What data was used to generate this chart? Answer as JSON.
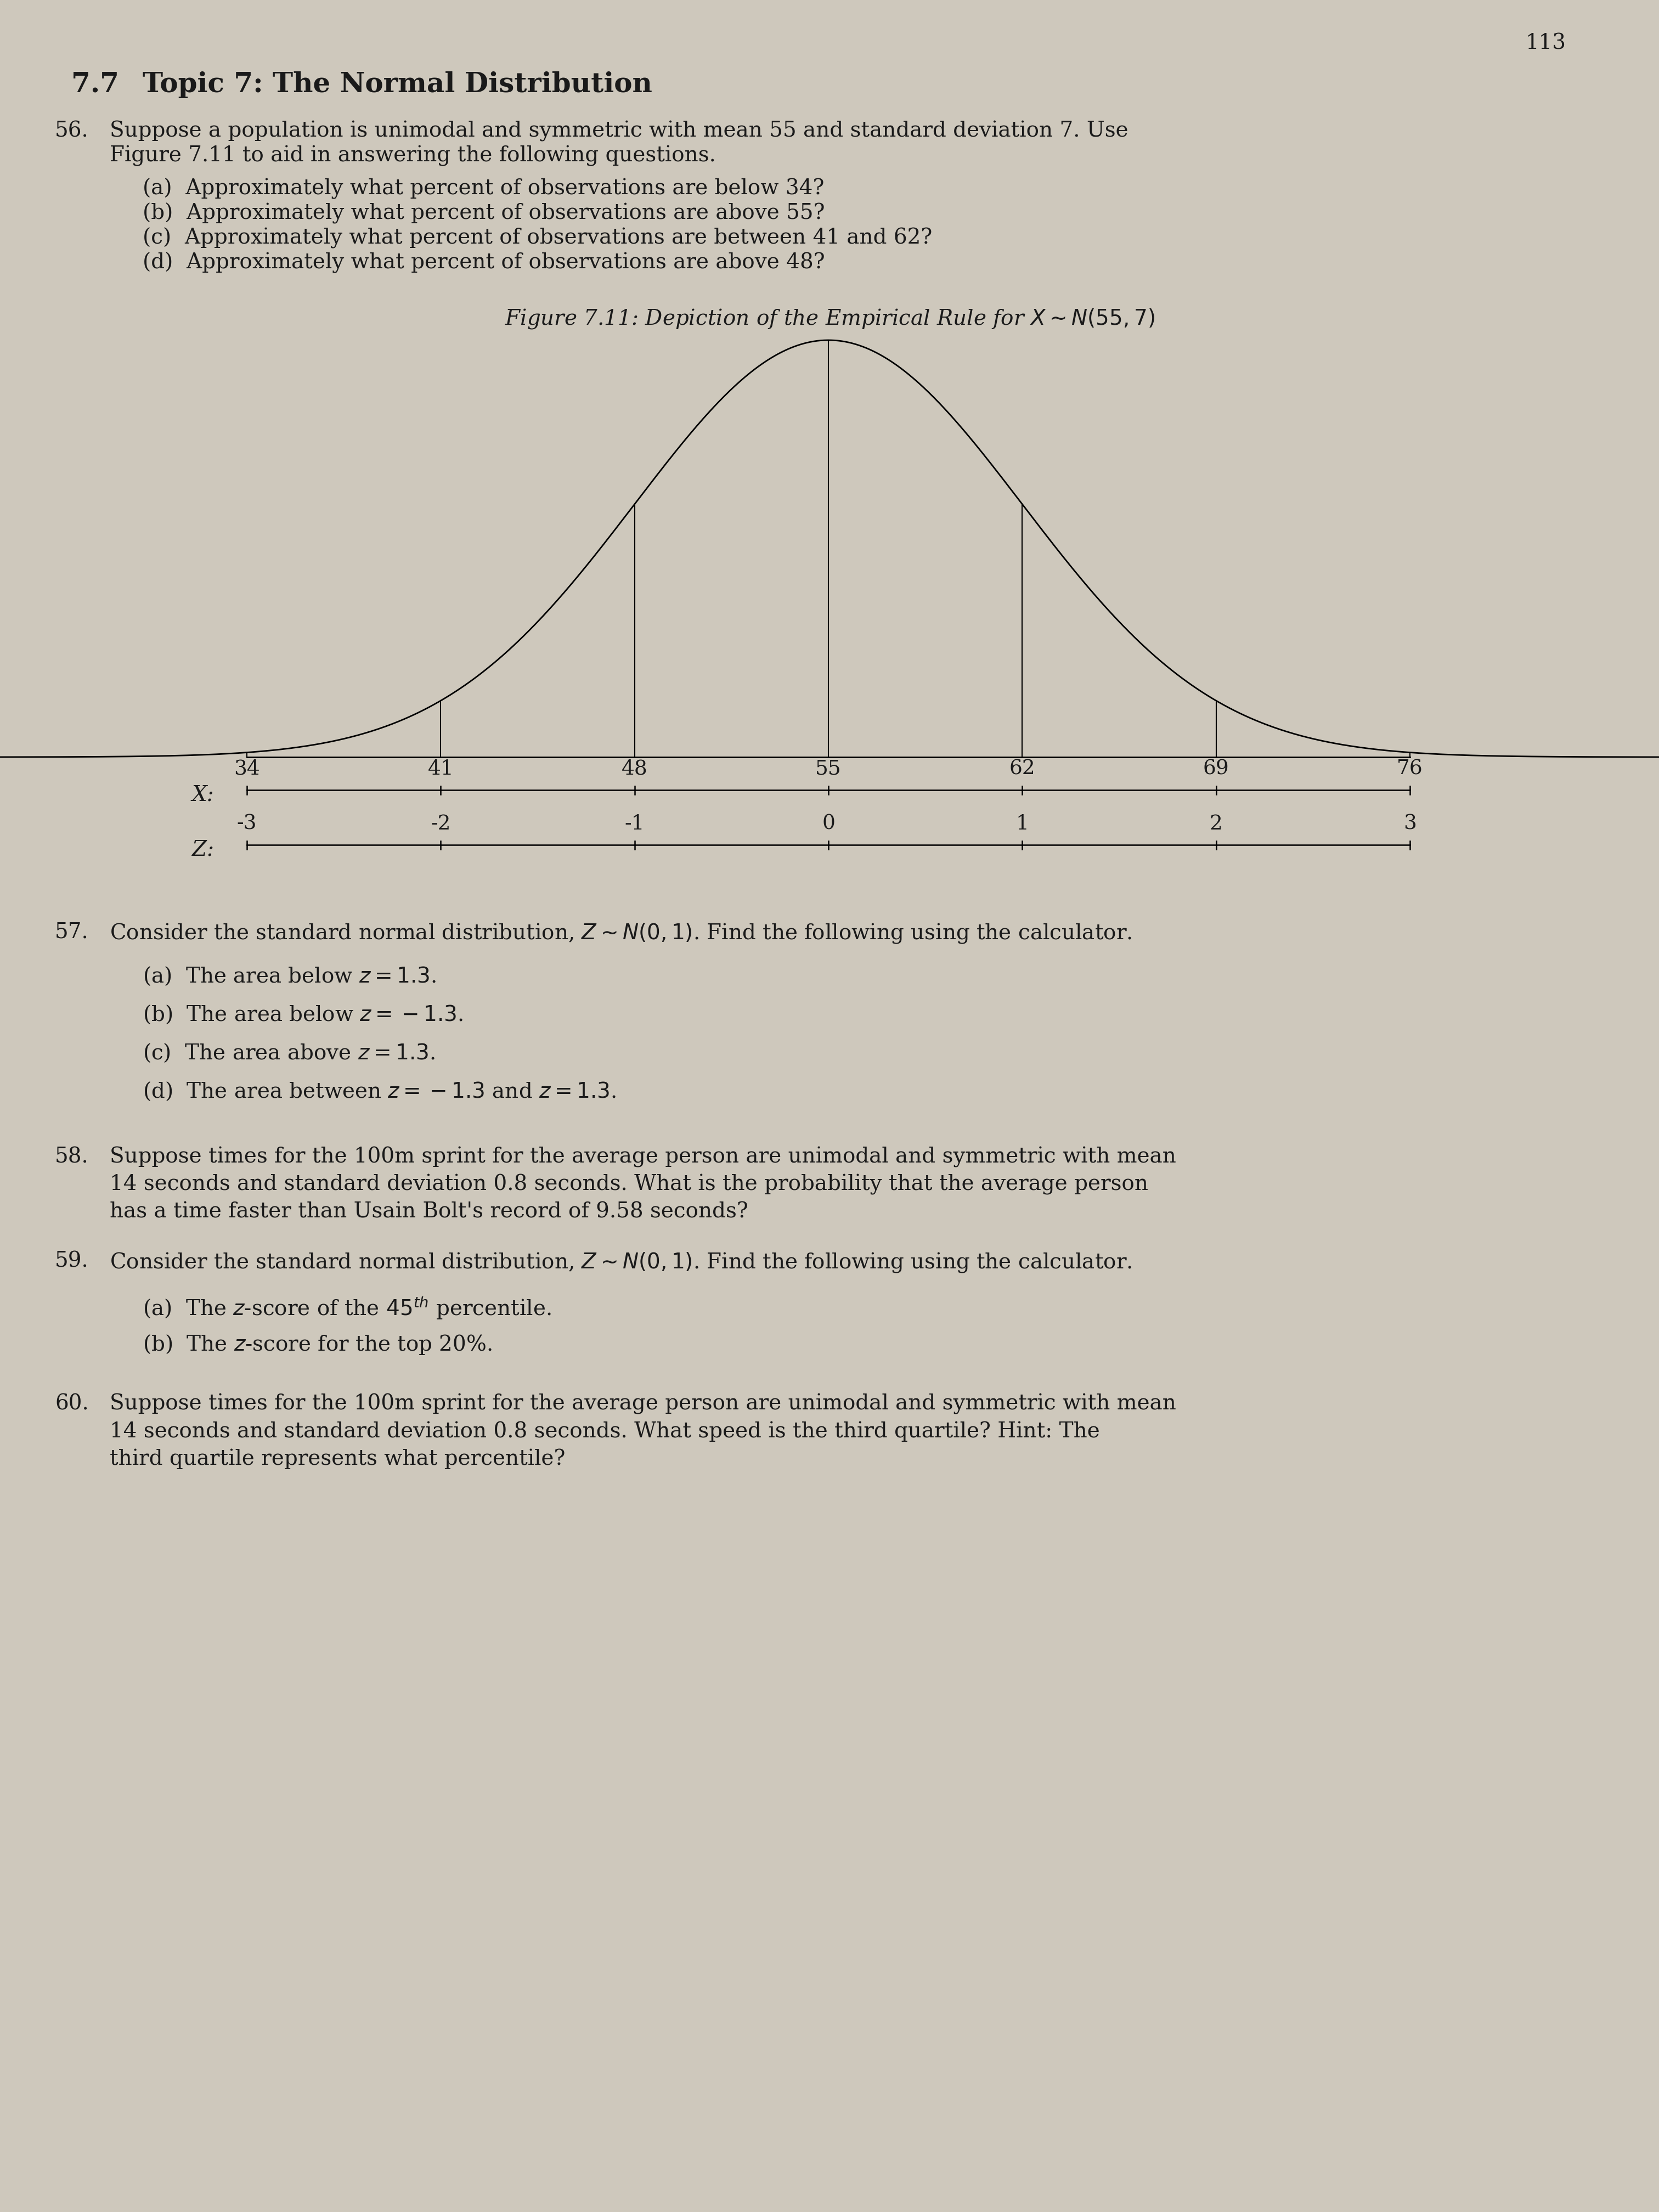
{
  "page_number": "113",
  "section_number": "7.7",
  "section_title": "Topic 7: The Normal Distribution",
  "bg_color": "#cec8bc",
  "text_color": "#1a1a1a",
  "p56_number": "56.",
  "p56_line1": "Suppose a population is unimodal and symmetric with mean 55 and standard deviation 7. Use",
  "p56_line2": "Figure 7.11 to aid in answering the following questions.",
  "p56_parts": [
    "(a)  Approximately what percent of observations are below 34?",
    "(b)  Approximately what percent of observations are above 55?",
    "(c)  Approximately what percent of observations are between 41 and 62?",
    "(d)  Approximately what percent of observations are above 48?"
  ],
  "figure_caption": "Figure 7.11: Depiction of the Empirical Rule for $X \\sim N(55, 7)$",
  "x_labels": [
    "34",
    "41",
    "48",
    "55",
    "62",
    "69",
    "76"
  ],
  "z_labels": [
    "-3",
    "-2",
    "-1",
    "0",
    "1",
    "2",
    "3"
  ],
  "mean": 55,
  "std": 7,
  "p57_number": "57.",
  "p57_intro": "Consider the standard normal distribution, $Z \\sim N(0, 1)$. Find the following using the calculator.",
  "p57_parts": [
    "(a)  The area below $z = 1.3$.",
    "(b)  The area below $z = -1.3$.",
    "(c)  The area above $z = 1.3$.",
    "(d)  The area between $z = -1.3$ and $z = 1.3$."
  ],
  "p58_number": "58.",
  "p58_line1": "Suppose times for the 100m sprint for the average person are unimodal and symmetric with mean",
  "p58_line2": "14 seconds and standard deviation 0.8 seconds. What is the probability that the average person",
  "p58_line3": "has a time faster than Usain Bolt's record of 9.58 seconds?",
  "p59_number": "59.",
  "p59_intro": "Consider the standard normal distribution, $Z \\sim N(0, 1)$. Find the following using the calculator.",
  "p59_parts": [
    "(a)  The $z$-score of the $45^{th}$ percentile.",
    "(b)  The $z$-score for the top 20%."
  ],
  "p60_number": "60.",
  "p60_line1": "Suppose times for the 100m sprint for the average person are unimodal and symmetric with mean",
  "p60_line2": "14 seconds and standard deviation 0.8 seconds. What speed is the third quartile? Hint: The",
  "p60_line3": "third quartile represents what percentile?"
}
